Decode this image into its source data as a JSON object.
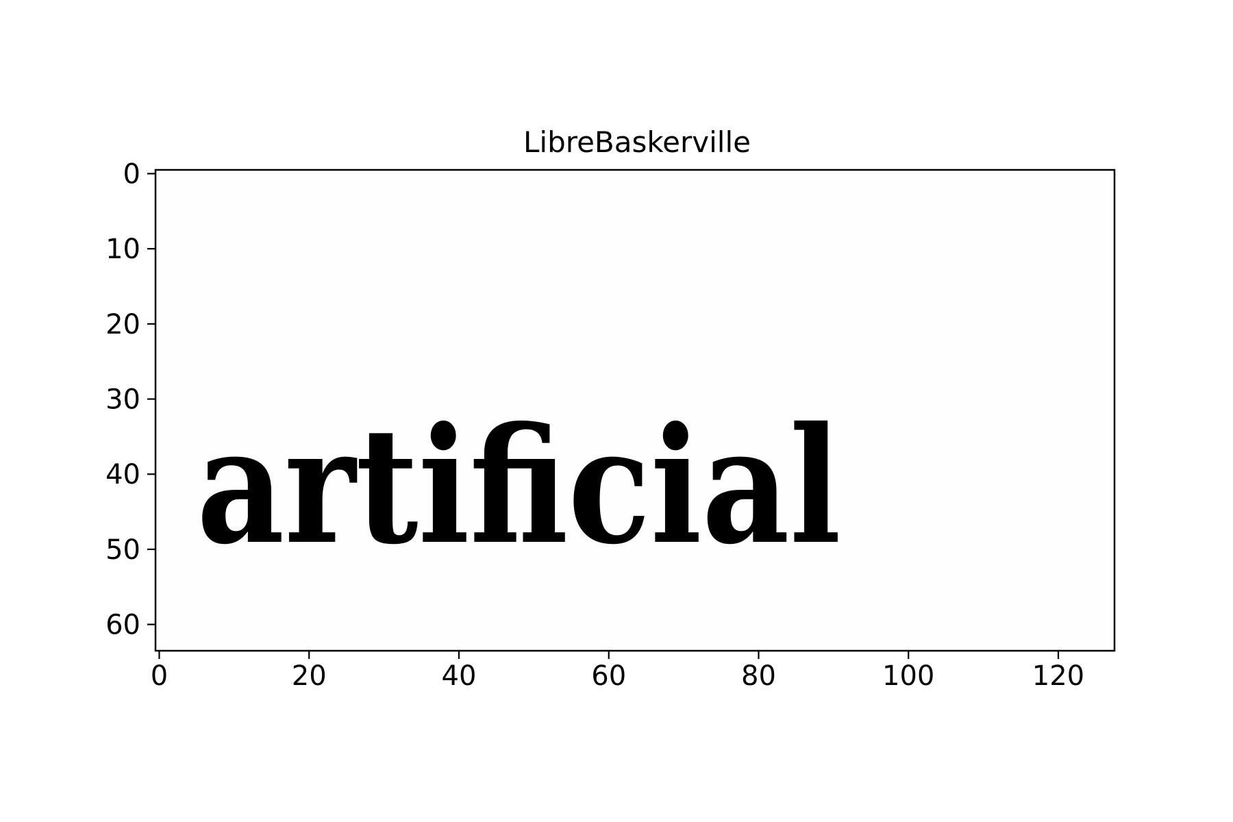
{
  "chart_data": {
    "type": "heatmap",
    "title": "LibreBaskerville",
    "xlabel": "",
    "ylabel": "",
    "image_shape": [
      64,
      128
    ],
    "xlim": [
      -0.5,
      127.5
    ],
    "ylim": [
      63.5,
      -0.5
    ],
    "x_ticks": [
      0,
      20,
      40,
      60,
      80,
      100,
      120
    ],
    "y_ticks": [
      0,
      10,
      20,
      30,
      40,
      50,
      60
    ],
    "rendered_word": "artificial",
    "word_extent": {
      "x": [
        5,
        91
      ],
      "y": [
        32,
        49
      ]
    },
    "colormap": "gray",
    "grid": false,
    "legend": "none"
  },
  "colors": {
    "ink": "#000000",
    "background": "#ffffff",
    "text": "#000000"
  }
}
